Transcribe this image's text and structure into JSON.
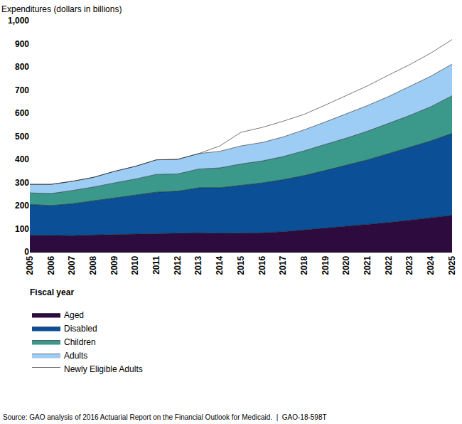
{
  "chart_data": {
    "type": "area",
    "y_label": "Expenditures (dollars in billions)",
    "x_label": "Fiscal year",
    "annotations": [
      "Source: GAO analysis of 2016 Actuarial Report on the Financial Outlook for Medicaid.  |  GAO-18-598T"
    ],
    "stacked": true,
    "grid": false,
    "legend": "bottom left",
    "x": [
      2005,
      2006,
      2007,
      2008,
      2009,
      2010,
      2011,
      2012,
      2013,
      2014,
      2015,
      2016,
      2017,
      2018,
      2019,
      2020,
      2021,
      2022,
      2023,
      2024,
      2025
    ],
    "xlim": [
      2005,
      2025
    ],
    "xticks": [
      2005,
      2006,
      2007,
      2008,
      2009,
      2010,
      2011,
      2012,
      2013,
      2014,
      2015,
      2016,
      2017,
      2018,
      2019,
      2020,
      2021,
      2022,
      2023,
      2024,
      2025
    ],
    "ylim": [
      0,
      1000
    ],
    "yticks": [
      0,
      100,
      200,
      300,
      400,
      500,
      600,
      700,
      800,
      900,
      {
        "value": 1000,
        "label": "1,000"
      }
    ],
    "series": [
      {
        "name": "Aged",
        "color": "#2e0b3e",
        "values": [
          72,
          70,
          70,
          73,
          75,
          77,
          80,
          82,
          82,
          80,
          80,
          82,
          87,
          95,
          102,
          110,
          117,
          127,
          137,
          147,
          158
        ]
      },
      {
        "name": "Disabled",
        "color": "#0b4f97",
        "values": [
          133,
          130,
          138,
          147,
          158,
          168,
          178,
          180,
          195,
          197,
          208,
          216,
          225,
          235,
          250,
          265,
          281,
          298,
          315,
          333,
          354
        ]
      },
      {
        "name": "Children",
        "color": "#3b998c",
        "values": [
          50,
          52,
          57,
          60,
          65,
          70,
          77,
          75,
          81,
          86,
          92,
          95,
          100,
          107,
          113,
          117,
          124,
          130,
          138,
          148,
          163
        ]
      },
      {
        "name": "Adults",
        "color": "#9dcdf5",
        "values": [
          37,
          40,
          40,
          42,
          50,
          55,
          63,
          63,
          67,
          72,
          78,
          80,
          85,
          91,
          97,
          105,
          111,
          117,
          125,
          132,
          137
        ]
      },
      {
        "name": "Newly Eligible Adults",
        "color": "#ffffff",
        "values": [
          0,
          0,
          0,
          0,
          0,
          0,
          0,
          0,
          0,
          23,
          59,
          65,
          68,
          67,
          73,
          80,
          85,
          93,
          95,
          100,
          106
        ]
      }
    ]
  }
}
